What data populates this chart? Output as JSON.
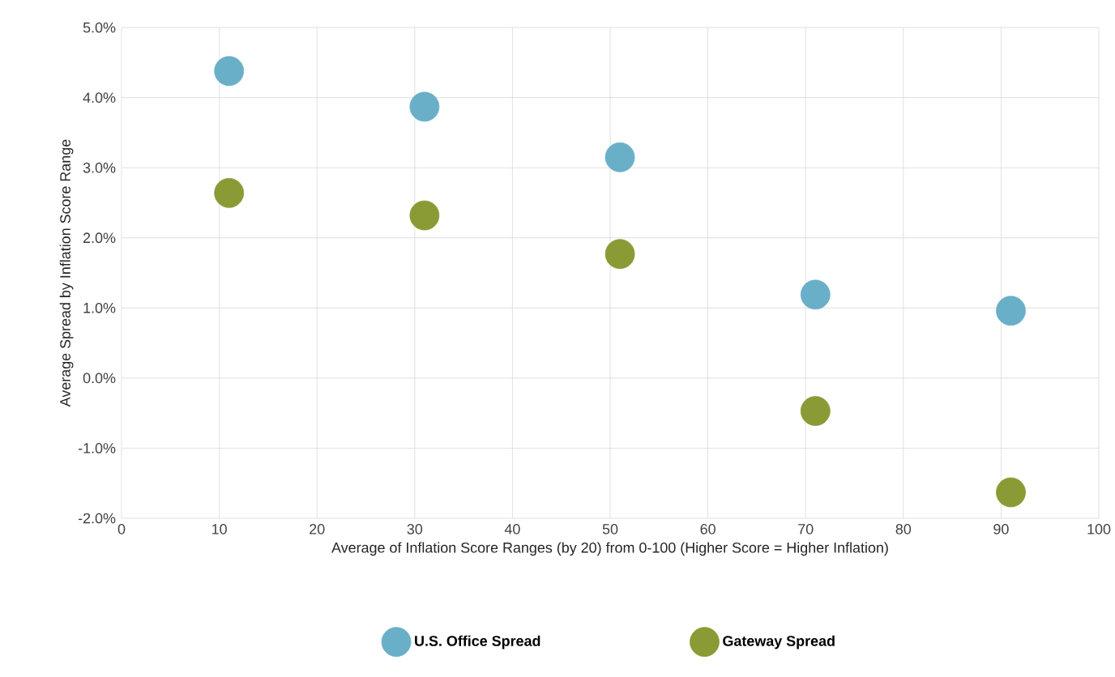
{
  "chart_data": {
    "type": "scatter",
    "xlabel": "Average of Inflation Score Ranges (by 20) from 0-100 (Higher Score = Higher Inflation)",
    "ylabel": "Average Spread by Inflation Score Range",
    "xlim": [
      0,
      100
    ],
    "xticks": [
      0,
      10,
      20,
      30,
      40,
      50,
      60,
      70,
      80,
      90,
      100
    ],
    "ylim": [
      -2,
      5
    ],
    "yticks": [
      {
        "value": -2,
        "label": "-2.0%"
      },
      {
        "value": -1,
        "label": "-1.0%"
      },
      {
        "value": 0,
        "label": "0.0%"
      },
      {
        "value": 1,
        "label": "1.0%"
      },
      {
        "value": 2,
        "label": "2.0%"
      },
      {
        "value": 3,
        "label": "3.0%"
      },
      {
        "value": 4,
        "label": "4.0%"
      },
      {
        "value": 5,
        "label": "5.0%"
      }
    ],
    "grid": true,
    "legend": "bottom",
    "marker": "circle",
    "series": [
      {
        "name": "U.S. Office Spread",
        "color": "#6aafc8",
        "x": [
          11,
          31,
          51,
          71,
          91
        ],
        "values": [
          4.38,
          3.87,
          3.15,
          1.19,
          0.96
        ]
      },
      {
        "name": "Gateway Spread",
        "color": "#8a9a35",
        "x": [
          11,
          31,
          51,
          71,
          91
        ],
        "values": [
          2.64,
          2.32,
          1.77,
          -0.47,
          -1.63
        ]
      }
    ]
  }
}
